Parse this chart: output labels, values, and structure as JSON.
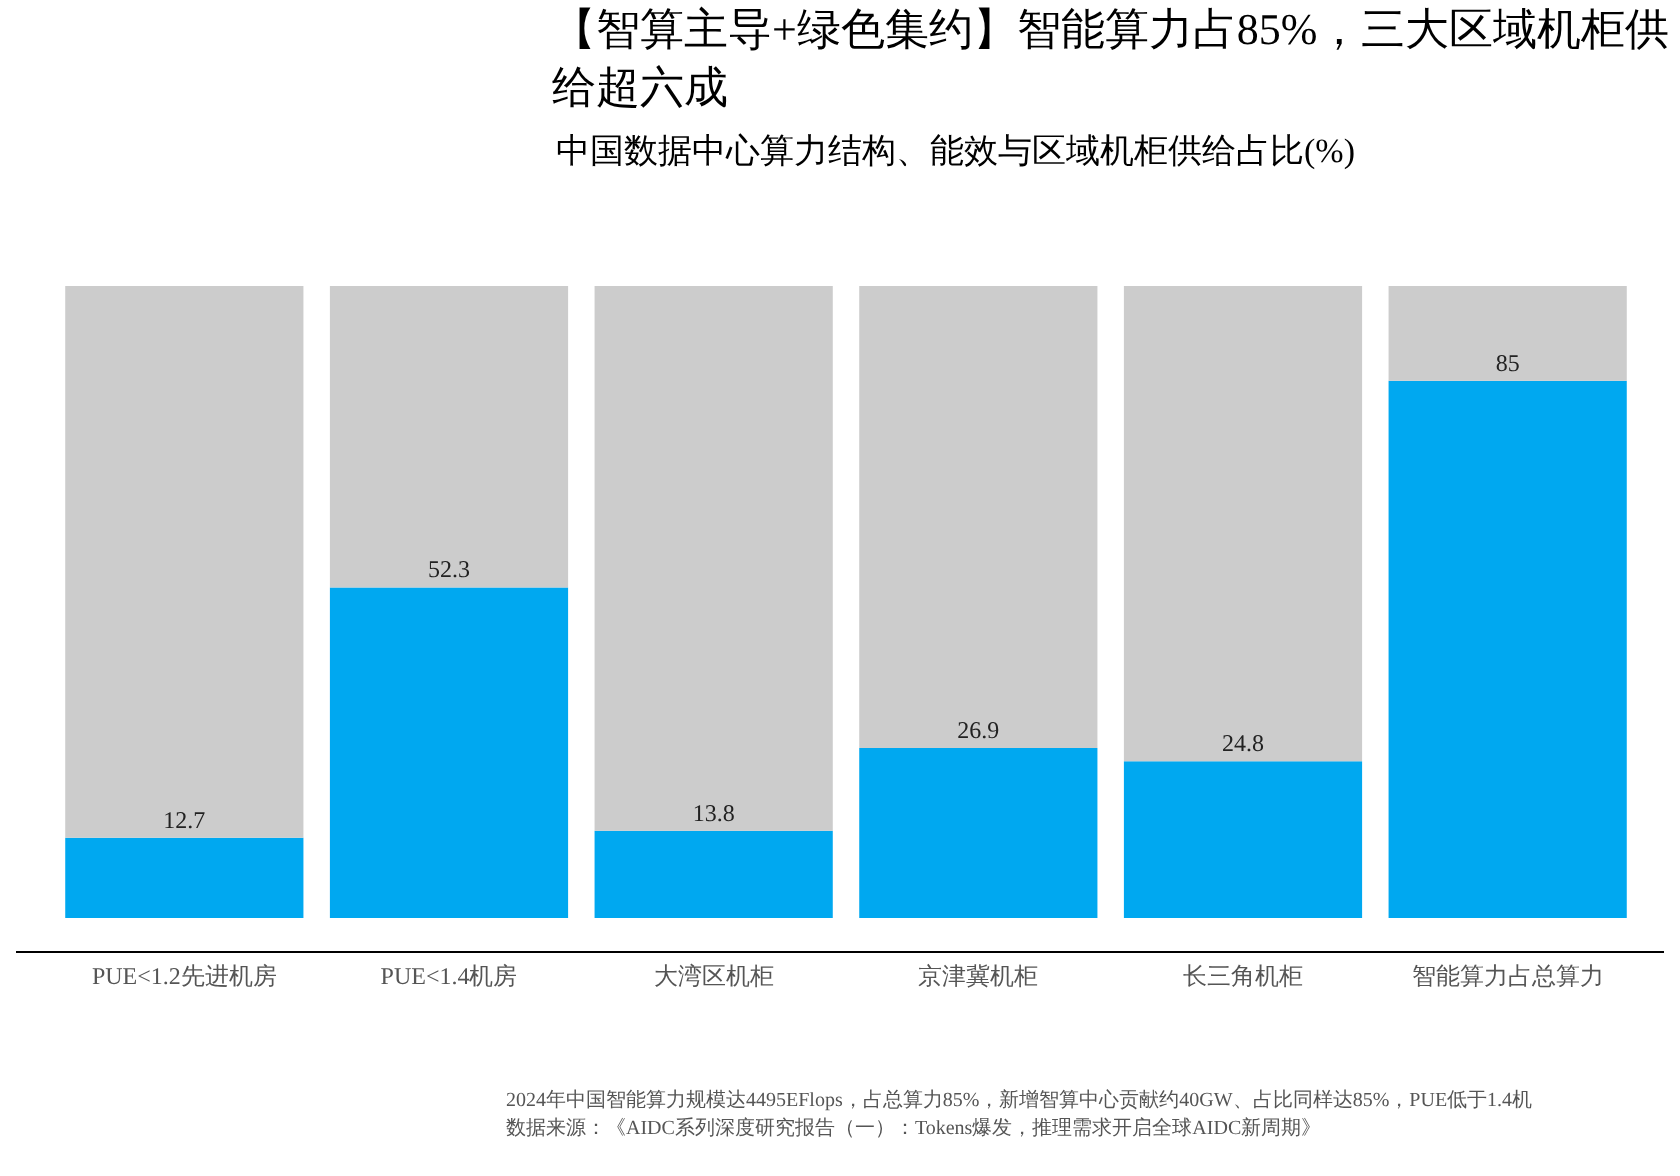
{
  "chart_data": {
    "type": "bar",
    "title": "【智算主导+绿色集约】智能算力占85%，三大区域机柜供给超六成",
    "subtitle": "中国数据中心算力结构、能效与区域机柜供给占比(%)",
    "categories": [
      "PUE<1.2先进机房",
      "PUE<1.4机房",
      "大湾区机柜",
      "京津冀机柜",
      "长三角机柜",
      "智能算力占总算力"
    ],
    "stacked": true,
    "ylim": [
      0,
      100
    ],
    "tick_labels": "x",
    "series": [
      {
        "color": "#00a8f0",
        "values": [
          12.7,
          52.3,
          13.8,
          26.9,
          24.8,
          85
        ],
        "value_labels": [
          "12.7",
          "52.3",
          "13.8",
          "26.9",
          "24.8",
          "85"
        ]
      },
      {
        "color": "#cccccc",
        "values": [
          87.3,
          47.7,
          86.2,
          73.1,
          75.2,
          15
        ]
      }
    ],
    "annotations": [
      "2024年中国智能算力规模达4495EFlops，占总算力85%，新增智算中心贡献约40GW、占比同样达85%，PUE低于1.4机",
      "数据来源：《AIDC系列深度研究报告（一）：Tokens爆发，推理需求开启全球AIDC新周期》"
    ]
  }
}
